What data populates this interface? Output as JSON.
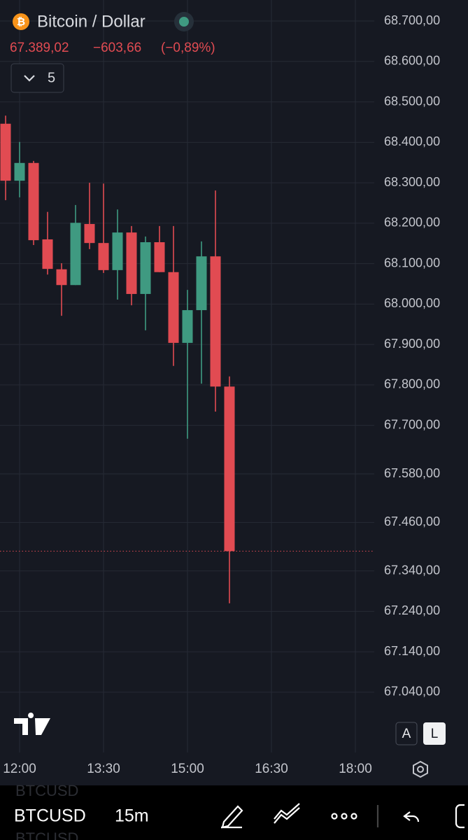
{
  "header": {
    "symbol": "Bitcoin / Dollar",
    "price": "67.389,02",
    "change": "−603,66",
    "change_percent": "(−0,89%)",
    "indicator_count": "5"
  },
  "chart_data": {
    "type": "candlestick",
    "categories": [
      null,
      "12:00",
      null,
      null,
      null,
      null,
      null,
      "13:30",
      null,
      null,
      null,
      null,
      null,
      "15:00",
      null,
      null,
      null,
      null,
      null,
      "16:30",
      null,
      null,
      null,
      null,
      null,
      "18:00"
    ],
    "open": [
      68446,
      68305,
      68349,
      68160,
      68086,
      68047,
      68198,
      68151,
      68084,
      68177,
      68025,
      68153,
      68079,
      67904,
      67985,
      68118,
      67796,
      null,
      null,
      null,
      null,
      null,
      null,
      null,
      null,
      null
    ],
    "high": [
      68466,
      68401,
      68354,
      68228,
      68101,
      68245,
      68300,
      68298,
      68234,
      68193,
      68167,
      68193,
      68193,
      68035,
      68155,
      68281,
      67821,
      null,
      null,
      null,
      null,
      null,
      null,
      null,
      null,
      null
    ],
    "low": [
      68257,
      68264,
      68146,
      68073,
      67971,
      68047,
      68136,
      68077,
      68011,
      67997,
      67935,
      68079,
      67847,
      67667,
      67803,
      67734,
      67260,
      null,
      null,
      null,
      null,
      null,
      null,
      null,
      null,
      null
    ],
    "close": [
      68305,
      68349,
      68158,
      68087,
      68047,
      68201,
      68151,
      68084,
      68177,
      68025,
      68153,
      68079,
      67904,
      67985,
      68118,
      67796,
      67389,
      null,
      null,
      null,
      null,
      null,
      null,
      null,
      null,
      null
    ],
    "up_color": "#3f9a81",
    "down_color": "#e14b52",
    "ylim": [
      66891,
      68752
    ],
    "yticks": [
      {
        "value": 68700,
        "label": "68.700,00"
      },
      {
        "value": 68600,
        "label": "68.600,00"
      },
      {
        "value": 68500,
        "label": "68.500,00"
      },
      {
        "value": 68400,
        "label": "68.400,00"
      },
      {
        "value": 68300,
        "label": "68.300,00"
      },
      {
        "value": 68200,
        "label": "68.200,00"
      },
      {
        "value": 68100,
        "label": "68.100,00"
      },
      {
        "value": 68000,
        "label": "68.000,00"
      },
      {
        "value": 67900,
        "label": "67.900,00"
      },
      {
        "value": 67800,
        "label": "67.800,00"
      },
      {
        "value": 67700,
        "label": "67.700,00"
      },
      {
        "value": 67580,
        "label": "67.580,00"
      },
      {
        "value": 67460,
        "label": "67.460,00"
      },
      {
        "value": 67340,
        "label": "67.340,00"
      },
      {
        "value": 67240,
        "label": "67.240,00"
      },
      {
        "value": 67140,
        "label": "67.140,00"
      },
      {
        "value": 67040,
        "label": "67.040,00"
      }
    ],
    "grid": true,
    "scale_buttons": [
      "A",
      "L"
    ]
  },
  "toolbar": {
    "symbol": "BTCUSD",
    "interval": "15m",
    "ghost_symbols": [
      "BTCUSD",
      "BTCUSD"
    ]
  }
}
